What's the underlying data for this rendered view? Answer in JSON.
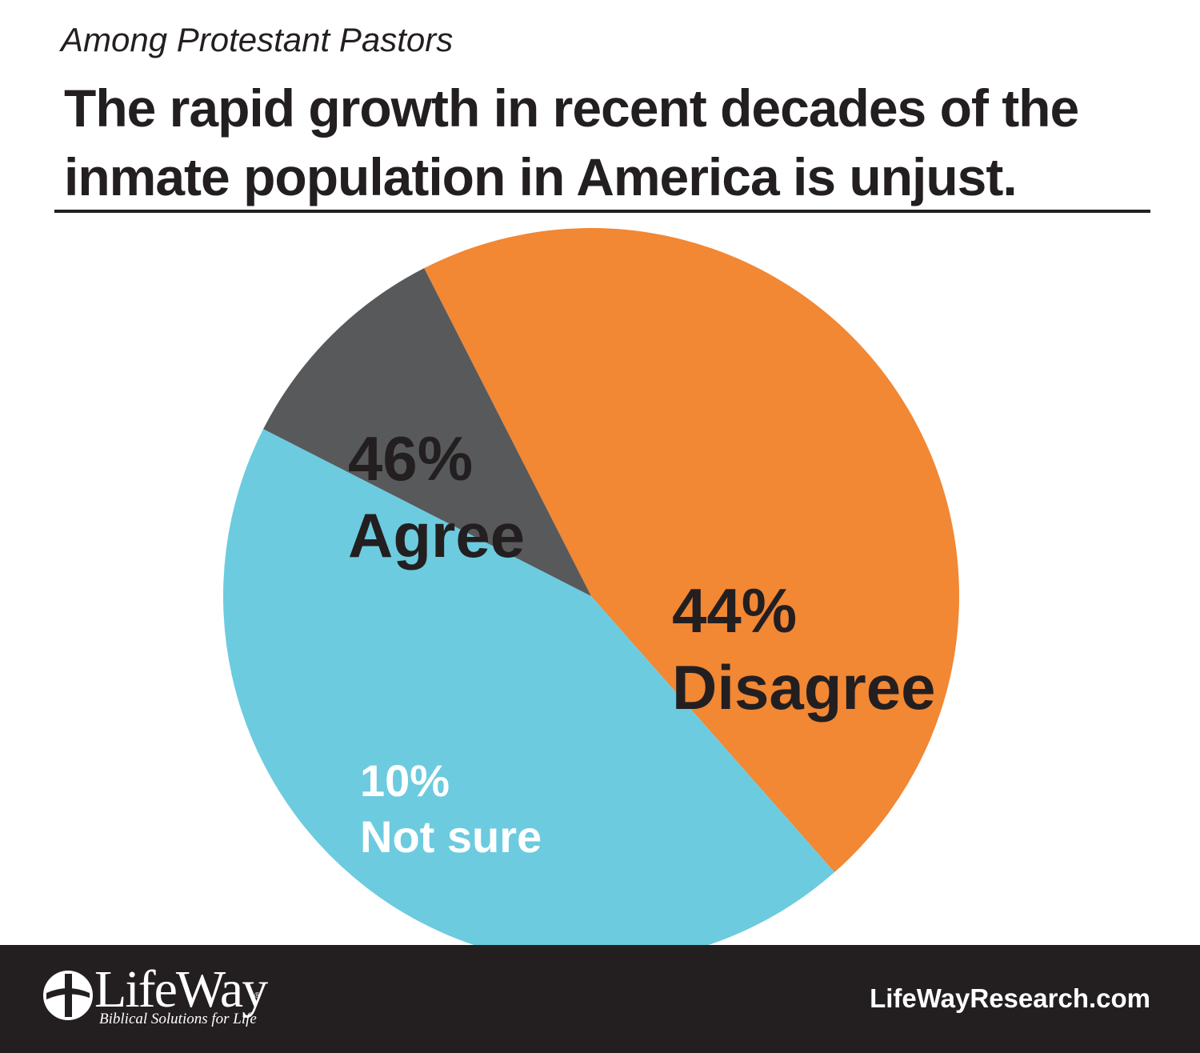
{
  "header": {
    "subtitle": "Among Protestant Pastors",
    "title": "The rapid growth in recent decades of the inmate population in America is unjust."
  },
  "chart_data": {
    "type": "pie",
    "title": "The rapid growth in recent decades of the inmate population in America is unjust.",
    "subtitle": "Among Protestant Pastors",
    "slices": [
      {
        "label": "Agree",
        "value": 46,
        "value_label": "46%",
        "color": "#f28734",
        "text_color": "#231f20"
      },
      {
        "label": "Disagree",
        "value": 44,
        "value_label": "44%",
        "color": "#6ccbdf",
        "text_color": "#231f20"
      },
      {
        "label": "Not sure",
        "value": 10,
        "value_label": "10%",
        "color": "#58595b",
        "text_color": "#ffffff"
      }
    ]
  },
  "footer": {
    "logo_text": "LifeWay",
    "logo_tagline": "Biblical Solutions for Life",
    "registered_mark": "®",
    "website": "LifeWayResearch.com"
  },
  "colors": {
    "text": "#231f20",
    "footer_bg": "#231f20",
    "footer_text": "#ffffff"
  }
}
